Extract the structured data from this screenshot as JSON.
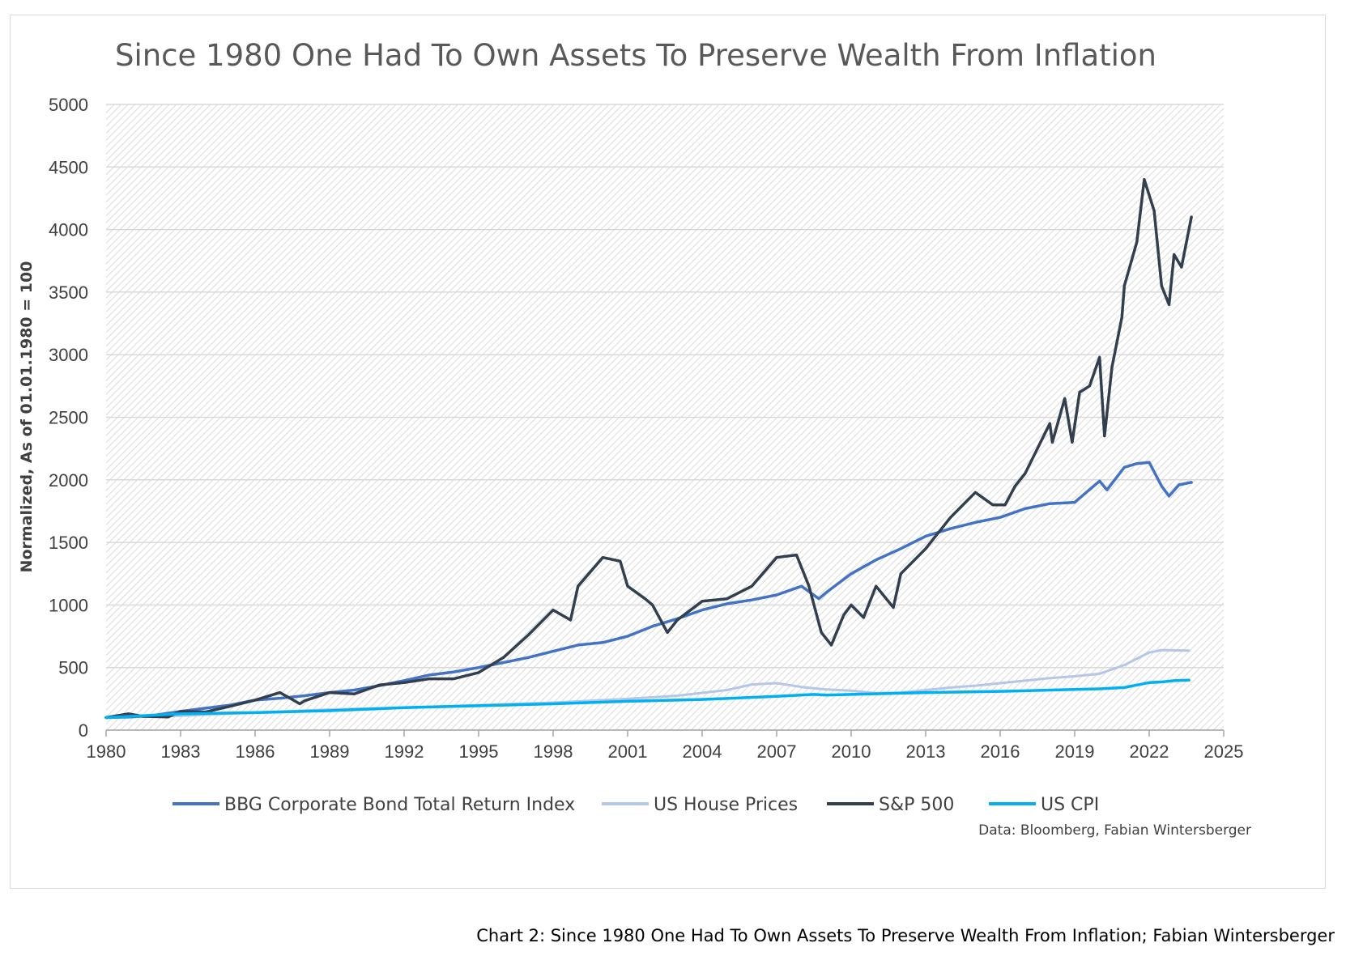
{
  "caption": "Chart 2: Since 1980 One Had To Own Assets To Preserve Wealth From Inflation; Fabian Wintersberger",
  "source": "Data: Bloomberg, Fabian Wintersberger",
  "chart_data": {
    "type": "line",
    "title": "Since 1980 One Had To Own Assets To Preserve Wealth From Inflation",
    "xlabel": "",
    "ylabel": "Normalized, As of 01.01.1980 = 100",
    "xlim": [
      1980,
      2025
    ],
    "ylim": [
      0,
      5000
    ],
    "xticks": [
      "1980",
      "1983",
      "1986",
      "1989",
      "1992",
      "1995",
      "1998",
      "2001",
      "2004",
      "2007",
      "2010",
      "2013",
      "2016",
      "2019",
      "2022",
      "2025"
    ],
    "yticks": [
      "0",
      "500",
      "1000",
      "1500",
      "2000",
      "2500",
      "3000",
      "3500",
      "4000",
      "4500",
      "5000"
    ],
    "grid": true,
    "plot_background": "hatched-gray",
    "legend_position": "bottom",
    "series": [
      {
        "name": "BBG Corporate Bond Total Return Index",
        "color": "#4472c4",
        "points": [
          [
            1980,
            100
          ],
          [
            1981,
            105
          ],
          [
            1982,
            120
          ],
          [
            1983,
            150
          ],
          [
            1984,
            175
          ],
          [
            1985,
            200
          ],
          [
            1986,
            240
          ],
          [
            1987,
            255
          ],
          [
            1988,
            275
          ],
          [
            1989,
            300
          ],
          [
            1990,
            320
          ],
          [
            1991,
            355
          ],
          [
            1992,
            395
          ],
          [
            1993,
            440
          ],
          [
            1994,
            465
          ],
          [
            1995,
            500
          ],
          [
            1996,
            540
          ],
          [
            1997,
            580
          ],
          [
            1998,
            630
          ],
          [
            1999,
            680
          ],
          [
            2000,
            700
          ],
          [
            2001,
            750
          ],
          [
            2002,
            830
          ],
          [
            2003,
            890
          ],
          [
            2004,
            960
          ],
          [
            2005,
            1010
          ],
          [
            2006,
            1040
          ],
          [
            2007,
            1080
          ],
          [
            2008,
            1150
          ],
          [
            2008.7,
            1050
          ],
          [
            2009,
            1100
          ],
          [
            2010,
            1250
          ],
          [
            2011,
            1360
          ],
          [
            2012,
            1450
          ],
          [
            2013,
            1550
          ],
          [
            2014,
            1610
          ],
          [
            2015,
            1660
          ],
          [
            2016,
            1700
          ],
          [
            2017,
            1770
          ],
          [
            2018,
            1810
          ],
          [
            2019,
            1820
          ],
          [
            2020,
            1990
          ],
          [
            2020.3,
            1920
          ],
          [
            2021,
            2100
          ],
          [
            2021.5,
            2130
          ],
          [
            2022,
            2140
          ],
          [
            2022.5,
            1950
          ],
          [
            2022.8,
            1870
          ],
          [
            2023.2,
            1960
          ],
          [
            2023.7,
            1980
          ]
        ]
      },
      {
        "name": "US House Prices",
        "color": "#b4c7e7",
        "points": [
          [
            1980,
            100
          ],
          [
            1983,
            115
          ],
          [
            1986,
            140
          ],
          [
            1989,
            165
          ],
          [
            1992,
            180
          ],
          [
            1995,
            200
          ],
          [
            1998,
            220
          ],
          [
            2001,
            250
          ],
          [
            2003,
            275
          ],
          [
            2005,
            320
          ],
          [
            2006,
            365
          ],
          [
            2007,
            375
          ],
          [
            2008,
            345
          ],
          [
            2009,
            325
          ],
          [
            2010,
            315
          ],
          [
            2011,
            295
          ],
          [
            2012,
            300
          ],
          [
            2013,
            320
          ],
          [
            2014,
            340
          ],
          [
            2015,
            355
          ],
          [
            2016,
            375
          ],
          [
            2017,
            395
          ],
          [
            2018,
            415
          ],
          [
            2019,
            430
          ],
          [
            2020,
            450
          ],
          [
            2021,
            520
          ],
          [
            2022,
            620
          ],
          [
            2022.5,
            640
          ],
          [
            2023.6,
            635
          ]
        ]
      },
      {
        "name": "S&P 500",
        "color": "#323f4f",
        "points": [
          [
            1980,
            100
          ],
          [
            1980.9,
            130
          ],
          [
            1981.5,
            110
          ],
          [
            1982.5,
            105
          ],
          [
            1983,
            150
          ],
          [
            1984,
            145
          ],
          [
            1985,
            190
          ],
          [
            1986,
            240
          ],
          [
            1987,
            300
          ],
          [
            1987.8,
            210
          ],
          [
            1988,
            235
          ],
          [
            1989,
            300
          ],
          [
            1990,
            290
          ],
          [
            1991,
            360
          ],
          [
            1992,
            380
          ],
          [
            1993,
            410
          ],
          [
            1994,
            410
          ],
          [
            1995,
            460
          ],
          [
            1996,
            580
          ],
          [
            1997,
            760
          ],
          [
            1998,
            960
          ],
          [
            1998.7,
            880
          ],
          [
            1999,
            1150
          ],
          [
            2000,
            1380
          ],
          [
            2000.7,
            1350
          ],
          [
            2001,
            1150
          ],
          [
            2001.7,
            1050
          ],
          [
            2002,
            1000
          ],
          [
            2002.6,
            780
          ],
          [
            2003,
            880
          ],
          [
            2004,
            1030
          ],
          [
            2005,
            1050
          ],
          [
            2006,
            1150
          ],
          [
            2007,
            1380
          ],
          [
            2007.8,
            1400
          ],
          [
            2008.3,
            1150
          ],
          [
            2008.8,
            780
          ],
          [
            2009.2,
            680
          ],
          [
            2009.7,
            920
          ],
          [
            2010,
            1000
          ],
          [
            2010.5,
            900
          ],
          [
            2011,
            1150
          ],
          [
            2011.7,
            980
          ],
          [
            2012,
            1250
          ],
          [
            2013,
            1450
          ],
          [
            2014,
            1700
          ],
          [
            2015,
            1900
          ],
          [
            2015.7,
            1800
          ],
          [
            2016.2,
            1800
          ],
          [
            2016.6,
            1950
          ],
          [
            2017,
            2050
          ],
          [
            2018,
            2450
          ],
          [
            2018.1,
            2300
          ],
          [
            2018.6,
            2650
          ],
          [
            2018.9,
            2300
          ],
          [
            2019.2,
            2700
          ],
          [
            2019.6,
            2750
          ],
          [
            2020,
            2980
          ],
          [
            2020.2,
            2350
          ],
          [
            2020.5,
            2900
          ],
          [
            2020.9,
            3300
          ],
          [
            2021,
            3550
          ],
          [
            2021.5,
            3900
          ],
          [
            2021.8,
            4400
          ],
          [
            2022.2,
            4150
          ],
          [
            2022.5,
            3550
          ],
          [
            2022.8,
            3400
          ],
          [
            2023,
            3800
          ],
          [
            2023.3,
            3700
          ],
          [
            2023.7,
            4100
          ]
        ]
      },
      {
        "name": "US CPI",
        "color": "#00b0f0",
        "points": [
          [
            1980,
            100
          ],
          [
            1983,
            130
          ],
          [
            1986,
            140
          ],
          [
            1989,
            155
          ],
          [
            1992,
            180
          ],
          [
            1995,
            195
          ],
          [
            1998,
            210
          ],
          [
            2001,
            230
          ],
          [
            2004,
            245
          ],
          [
            2007,
            270
          ],
          [
            2008.5,
            285
          ],
          [
            2009,
            280
          ],
          [
            2010,
            285
          ],
          [
            2013,
            300
          ],
          [
            2016,
            310
          ],
          [
            2019,
            325
          ],
          [
            2020,
            330
          ],
          [
            2021,
            340
          ],
          [
            2021.5,
            360
          ],
          [
            2022,
            380
          ],
          [
            2022.5,
            385
          ],
          [
            2023,
            395
          ],
          [
            2023.6,
            400
          ]
        ]
      }
    ]
  }
}
